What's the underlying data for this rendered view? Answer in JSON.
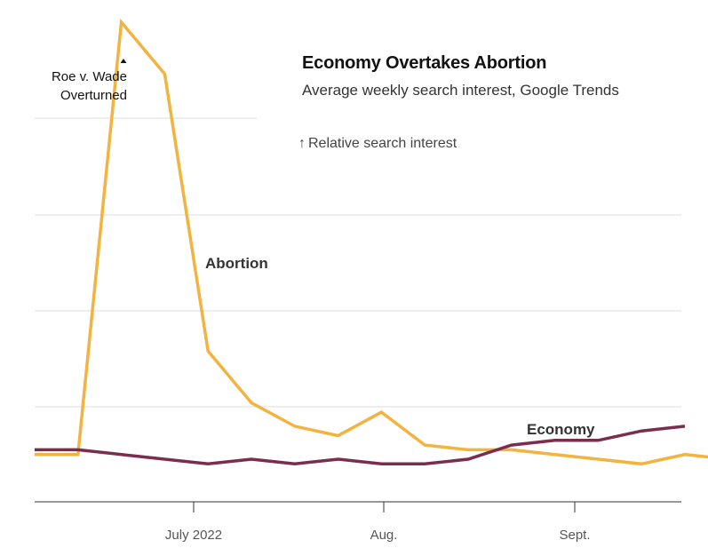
{
  "chart_data": {
    "type": "line",
    "title": "Economy Overtakes Abortion",
    "subtitle": "Average weekly search interest, Google Trends",
    "ylabel": "Relative search interest",
    "x_tick_labels": [
      "July 2022",
      "Aug.",
      "Sept."
    ],
    "ylim": [
      0,
      100
    ],
    "grid": true,
    "annotation": {
      "line1": "Roe v. Wade",
      "line2": "Overturned"
    },
    "x": [
      "2022-05-22",
      "2022-05-29",
      "2022-06-05",
      "2022-06-12",
      "2022-06-19",
      "2022-06-26",
      "2022-07-03",
      "2022-07-10",
      "2022-07-17",
      "2022-07-24",
      "2022-07-31",
      "2022-08-07",
      "2022-08-14",
      "2022-08-21",
      "2022-08-28",
      "2022-09-04",
      "2022-09-11",
      "2022-09-18"
    ],
    "series": [
      {
        "name": "Abortion",
        "color": "#f2b340",
        "values": [
          8,
          8,
          100,
          89,
          30,
          19,
          14,
          12,
          17,
          10,
          9,
          9,
          8,
          7,
          6,
          8,
          7,
          null
        ]
      },
      {
        "name": "Economy",
        "color": "#7b2d4e",
        "values": [
          9,
          9,
          8,
          7,
          6,
          7,
          6,
          7,
          6,
          6,
          7,
          10,
          11,
          11,
          13,
          14,
          null,
          null
        ]
      }
    ]
  }
}
